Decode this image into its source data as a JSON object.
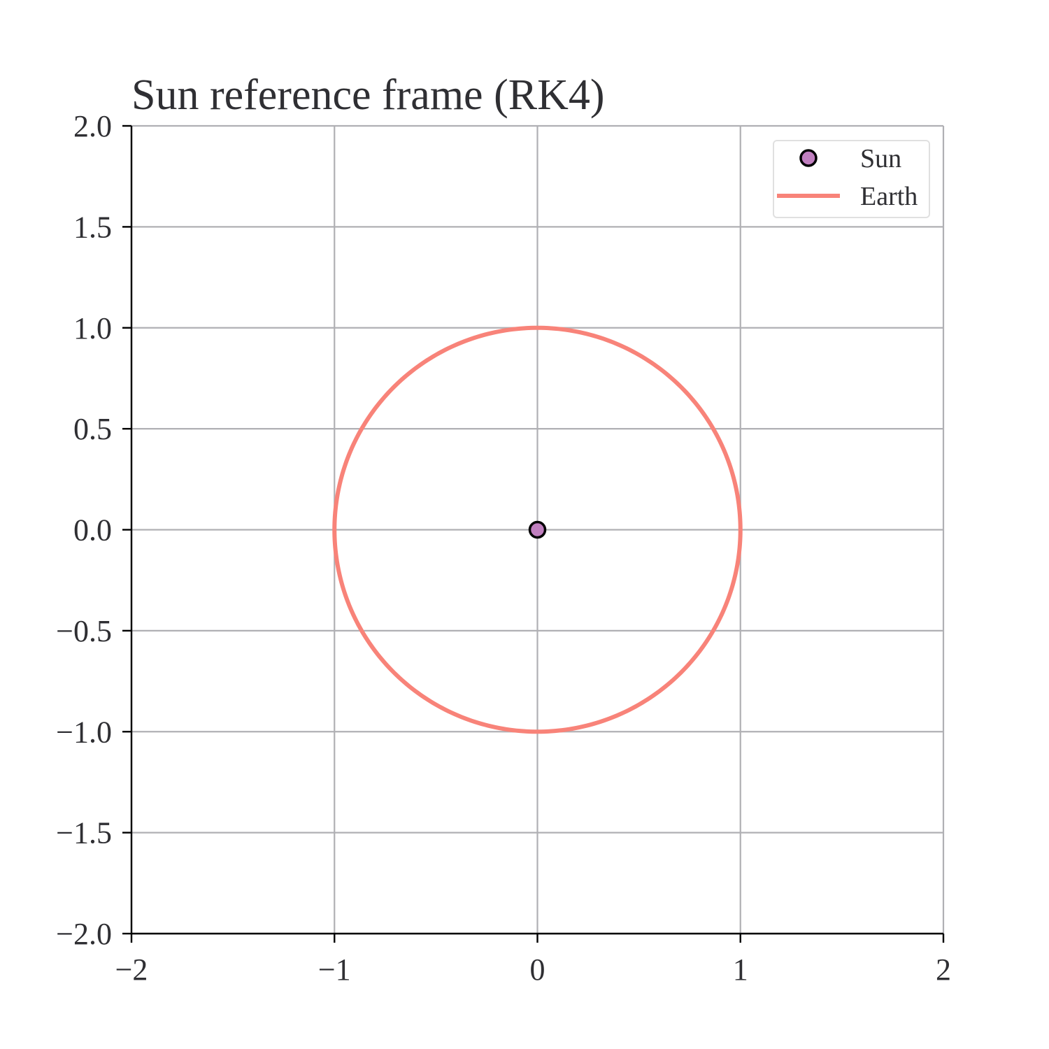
{
  "chart_data": {
    "type": "line",
    "title": "Sun reference frame (RK4)",
    "xlabel": "",
    "ylabel": "",
    "xlim": [
      -2,
      2
    ],
    "ylim": [
      -2,
      2
    ],
    "x_ticks": [
      -2,
      -1,
      0,
      1,
      2
    ],
    "x_tick_labels": [
      "−2",
      "−1",
      "0",
      "1",
      "2"
    ],
    "y_ticks": [
      2.0,
      1.5,
      1.0,
      0.5,
      0.0,
      -0.5,
      -1.0,
      -1.5,
      -2.0
    ],
    "y_tick_labels": [
      "2.0",
      "1.5",
      "1.0",
      "0.5",
      "0.0",
      "−0.5",
      "−1.0",
      "−1.5",
      "−2.0"
    ],
    "grid": true,
    "legend_position": "top-right",
    "series": [
      {
        "name": "Sun",
        "kind": "scatter",
        "color": "#c07fbf",
        "edge_color": "#000000",
        "points": [
          [
            0,
            0
          ]
        ]
      },
      {
        "name": "Earth",
        "kind": "line",
        "color": "#f88379",
        "orbit": {
          "center": [
            0,
            0
          ],
          "radius": 1.0
        }
      }
    ]
  }
}
